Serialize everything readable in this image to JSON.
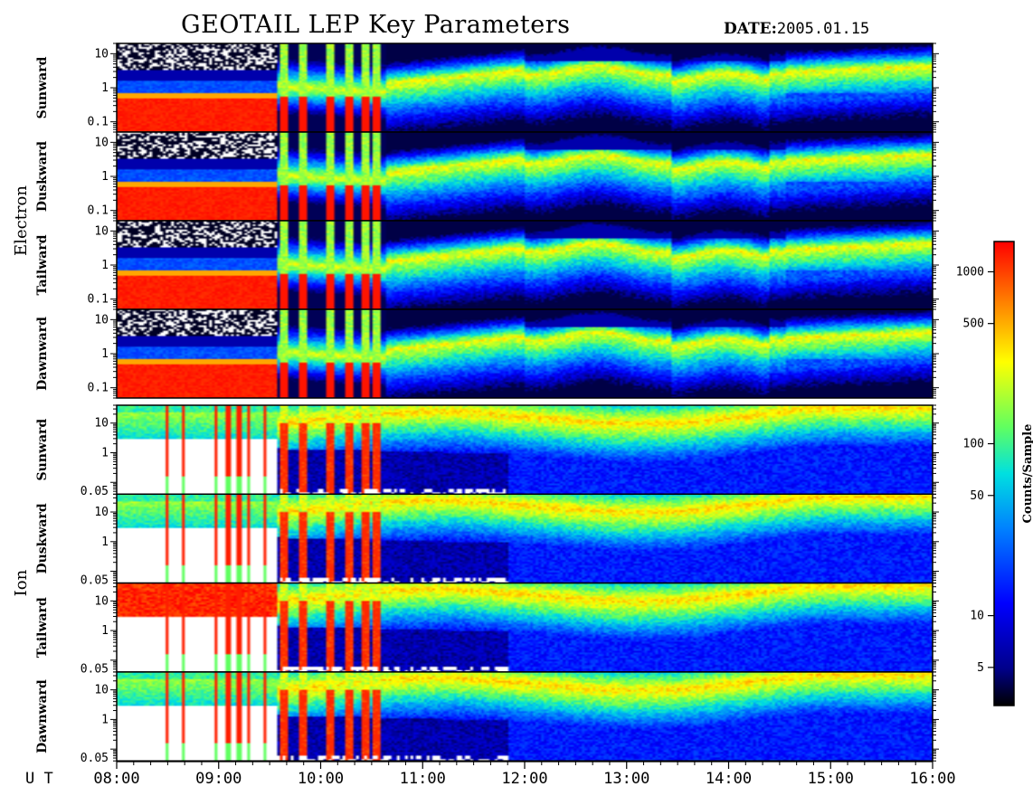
{
  "header": {
    "title": "GEOTAIL LEP Key Parameters",
    "date_label": "DATE:",
    "date_value": "2005.01.15"
  },
  "chart_data": {
    "type": "heatmap",
    "title": "GEOTAIL LEP Key Parameters",
    "x_axis": {
      "label": "U T",
      "range": [
        "08:00",
        "16:00"
      ],
      "ticks": [
        "08:00",
        "09:00",
        "10:00",
        "11:00",
        "12:00",
        "13:00",
        "14:00",
        "15:00",
        "16:00"
      ]
    },
    "groups": [
      {
        "name": "Electron",
        "panels": [
          {
            "label": "Sunward",
            "ylim": [
              0.05,
              20
            ],
            "y_scale": "log",
            "ticks": [
              "10",
              "1",
              "0.1"
            ]
          },
          {
            "label": "Duskward",
            "ylim": [
              0.05,
              20
            ],
            "y_scale": "log",
            "ticks": [
              "10",
              "1",
              "0.1"
            ]
          },
          {
            "label": "Tailward",
            "ylim": [
              0.05,
              20
            ],
            "y_scale": "log",
            "ticks": [
              "10",
              "1",
              "0.1"
            ]
          },
          {
            "label": "Dawnward",
            "ylim": [
              0.05,
              20
            ],
            "y_scale": "log",
            "ticks": [
              "10",
              "1",
              "0.1"
            ]
          }
        ]
      },
      {
        "name": "Ion",
        "panels": [
          {
            "label": "Sunward",
            "ylim": [
              0.04,
              40
            ],
            "y_scale": "log",
            "ticks": [
              "10",
              "1",
              "0.05"
            ]
          },
          {
            "label": "Duskward",
            "ylim": [
              0.04,
              40
            ],
            "y_scale": "log",
            "ticks": [
              "10",
              "1",
              "0.05"
            ]
          },
          {
            "label": "Tailward",
            "ylim": [
              0.04,
              40
            ],
            "y_scale": "log",
            "ticks": [
              "10",
              "1",
              "0.05"
            ]
          },
          {
            "label": "Dawnward",
            "ylim": [
              0.04,
              40
            ],
            "y_scale": "log",
            "ticks": [
              "10",
              "1",
              "0.05"
            ]
          }
        ]
      }
    ],
    "colorbar": {
      "label": "Counts/Sample",
      "scale": "log",
      "range": [
        3,
        1500
      ],
      "ticks": [
        "1000",
        "500",
        "100",
        "50",
        "10",
        "5"
      ],
      "colors": [
        "#000000",
        "#00008b",
        "#0000ff",
        "#0080ff",
        "#00e0e0",
        "#60ff60",
        "#ffff00",
        "#ff8000",
        "#ff0000"
      ]
    }
  }
}
